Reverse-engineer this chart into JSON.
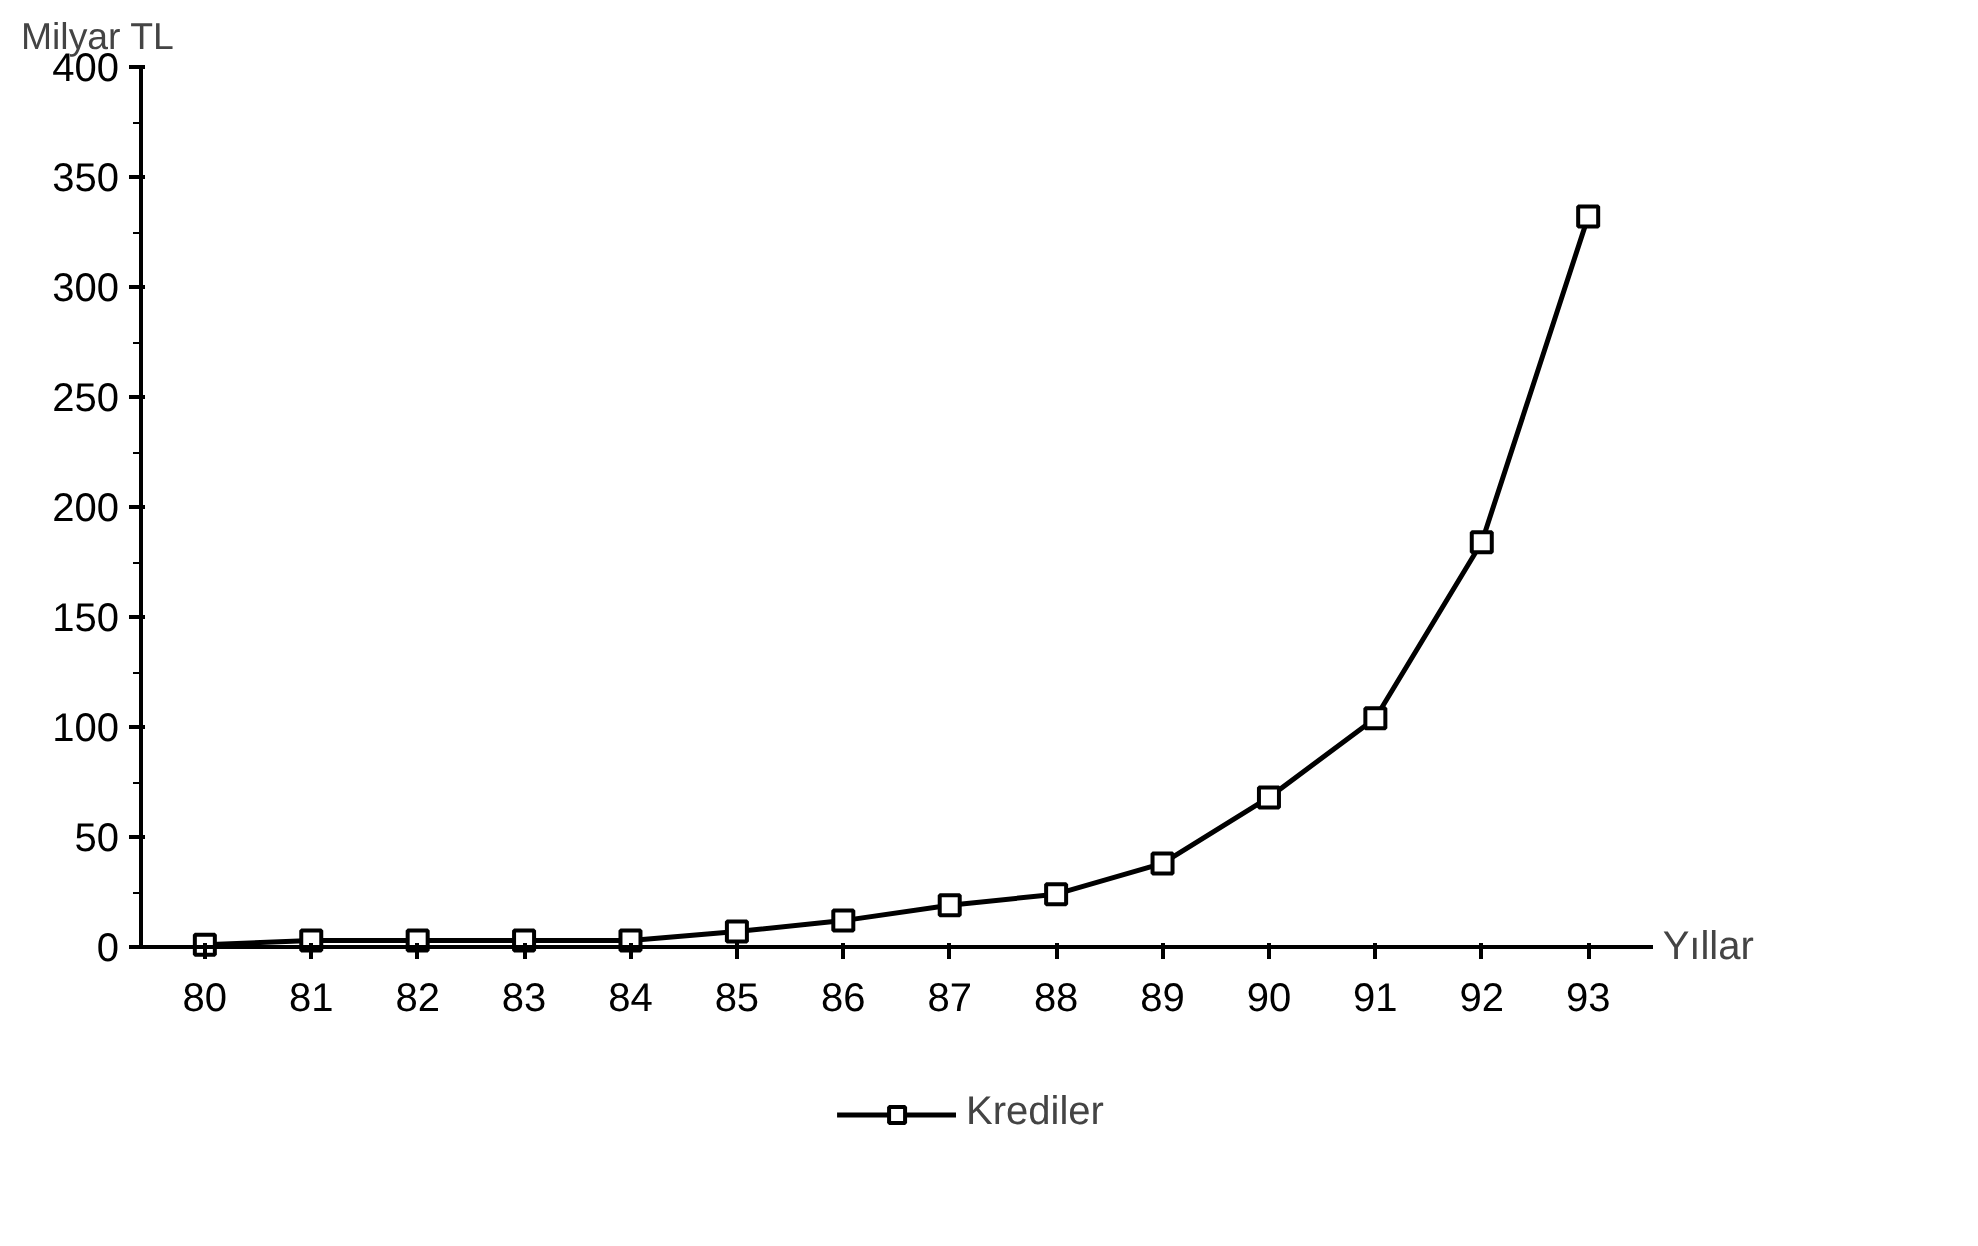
{
  "chart_data": {
    "type": "line",
    "ylabel": "Milyar TL",
    "xlabel": "Yıllar",
    "categories": [
      "80",
      "81",
      "82",
      "83",
      "84",
      "85",
      "86",
      "87",
      "88",
      "89",
      "90",
      "91",
      "92",
      "93"
    ],
    "series": [
      {
        "name": "Krediler",
        "color": "#000000",
        "values": [
          1,
          3,
          3,
          3,
          3,
          7,
          12,
          19,
          24,
          38,
          68,
          104,
          184,
          332
        ]
      }
    ],
    "ylim": [
      0,
      400
    ],
    "yticks": [
      0,
      50,
      100,
      150,
      200,
      250,
      300,
      350,
      400
    ],
    "marker": "square",
    "legend": "bottom",
    "grid": false
  }
}
